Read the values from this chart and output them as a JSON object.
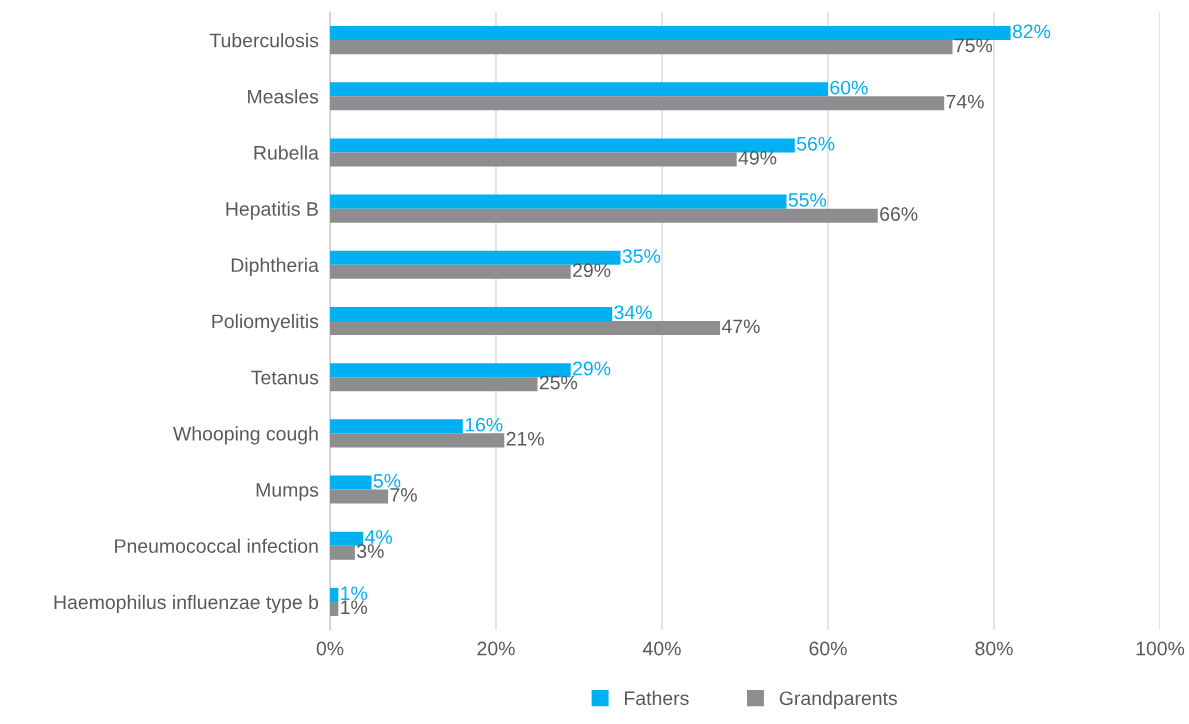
{
  "chart_data": {
    "type": "bar",
    "orientation": "horizontal",
    "categories": [
      "Tuberculosis",
      "Measles",
      "Rubella",
      "Hepatitis B",
      "Diphtheria",
      "Poliomyelitis",
      "Tetanus",
      "Whooping cough",
      "Mumps",
      "Pneumococcal infection",
      "Haemophilus influenzae type b"
    ],
    "series": [
      {
        "name": "Fathers",
        "color": "#00b0f0",
        "values": [
          82,
          60,
          56,
          55,
          35,
          34,
          29,
          16,
          5,
          4,
          1
        ],
        "value_labels": [
          "82%",
          "60%",
          "56%",
          "55%",
          "35%",
          "34%",
          "29%",
          "16%",
          "5%",
          "4%",
          "1%"
        ]
      },
      {
        "name": "Grandparents",
        "color": "#8e8e91",
        "values": [
          75,
          74,
          49,
          66,
          29,
          47,
          25,
          21,
          7,
          3,
          1
        ],
        "value_labels": [
          "75%",
          "74%",
          "49%",
          "66%",
          "29%",
          "47%",
          "25%",
          "21%",
          "7%",
          "3%",
          "1%"
        ]
      }
    ],
    "xlim": [
      0,
      100
    ],
    "xticks": [
      {
        "value": 0,
        "label": "0%"
      },
      {
        "value": 20,
        "label": "20%"
      },
      {
        "value": 40,
        "label": "40%"
      },
      {
        "value": 60,
        "label": "60%"
      },
      {
        "value": 80,
        "label": "80%"
      },
      {
        "value": 100,
        "label": "100%"
      }
    ],
    "grid": "x",
    "legend": "bottom"
  }
}
